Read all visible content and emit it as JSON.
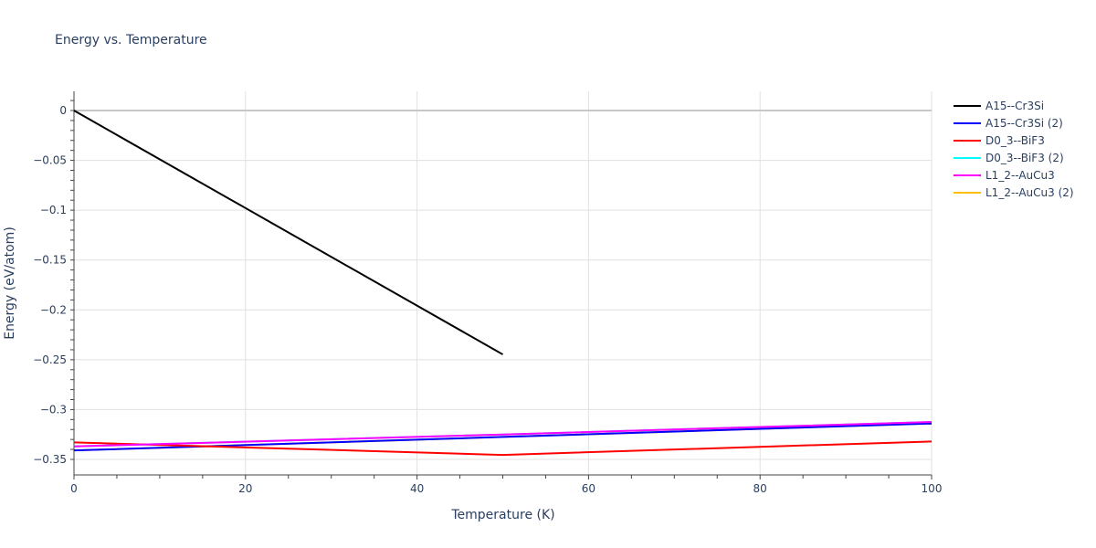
{
  "chart_data": {
    "type": "line",
    "title": "Energy vs. Temperature",
    "xlabel": "Temperature (K)",
    "ylabel": "Energy (eV/atom)",
    "xlim": [
      0,
      100
    ],
    "ylim": [
      -0.365,
      0.018
    ],
    "x_ticks": [
      "0",
      "20",
      "40",
      "60",
      "80",
      "100"
    ],
    "y_ticks": [
      "0",
      "−0.05",
      "−0.1",
      "−0.15",
      "−0.2",
      "−0.25",
      "−0.3",
      "−0.35"
    ],
    "grid": true,
    "legend_position": "right",
    "series": [
      {
        "name": "A15--Cr3Si",
        "color": "#000000",
        "x": [
          0,
          50
        ],
        "y": [
          0,
          -0.2447
        ]
      },
      {
        "name": "A15--Cr3Si (2)",
        "color": "#0000ff",
        "x": [
          0,
          50,
          100
        ],
        "y": [
          -0.341,
          -0.3275,
          -0.314
        ]
      },
      {
        "name": "D0_3--BiF3",
        "color": "#ff0000",
        "x": [
          0,
          50,
          100
        ],
        "y": [
          -0.333,
          -0.3455,
          -0.332
        ]
      },
      {
        "name": "D0_3--BiF3 (2)",
        "color": "#00ffff",
        "x": [
          0,
          50,
          100
        ],
        "y": [
          -0.337,
          -0.325,
          -0.3125
        ]
      },
      {
        "name": "L1_2--AuCu3",
        "color": "#ff00ff",
        "x": [
          0,
          50,
          100
        ],
        "y": [
          -0.337,
          -0.325,
          -0.3125
        ]
      },
      {
        "name": "L1_2--AuCu3 (2)",
        "color": "#ffbf00",
        "x": [
          0,
          50,
          100
        ],
        "y": [
          -0.341,
          -0.3275,
          -0.314
        ]
      }
    ]
  },
  "legend": {
    "items": [
      {
        "label": "A15--Cr3Si",
        "color": "#000000"
      },
      {
        "label": "A15--Cr3Si (2)",
        "color": "#0000ff"
      },
      {
        "label": "D0_3--BiF3",
        "color": "#ff0000"
      },
      {
        "label": "D0_3--BiF3 (2)",
        "color": "#00ffff"
      },
      {
        "label": "L1_2--AuCu3",
        "color": "#ff00ff"
      },
      {
        "label": "L1_2--AuCu3 (2)",
        "color": "#ffbf00"
      }
    ]
  }
}
